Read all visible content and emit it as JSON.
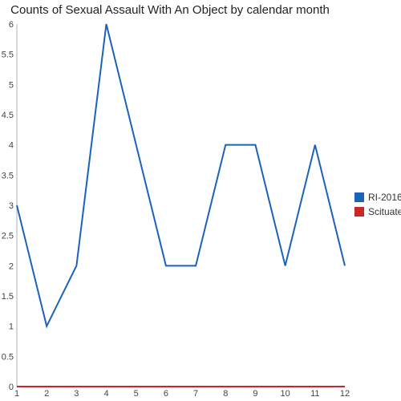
{
  "chart_data": {
    "type": "line",
    "title": "Counts of Sexual Assault With An Object by calendar month",
    "xlabel": "",
    "ylabel": "",
    "x": [
      1,
      2,
      3,
      4,
      5,
      6,
      7,
      8,
      9,
      10,
      11,
      12
    ],
    "x_tick_labels": [
      "1",
      "2",
      "3",
      "4",
      "5",
      "6",
      "7",
      "8",
      "9",
      "10",
      "11",
      "12"
    ],
    "y_tick_labels": [
      "0",
      "0.5",
      "1",
      "1.5",
      "2",
      "2.5",
      "3",
      "3.5",
      "4",
      "4.5",
      "5",
      "5.5",
      "6"
    ],
    "ylim": [
      0,
      6
    ],
    "grid": false,
    "legend_position": "right",
    "series": [
      {
        "name": "RI-2016",
        "color": "#1c62b9",
        "values": [
          3,
          1,
          2,
          6,
          4,
          2,
          2,
          4,
          4,
          2,
          4,
          2
        ]
      },
      {
        "name": "Scituate",
        "color": "#c62828",
        "values": [
          0,
          0,
          0,
          0,
          0,
          0,
          0,
          0,
          0,
          0,
          0,
          0
        ]
      }
    ]
  }
}
